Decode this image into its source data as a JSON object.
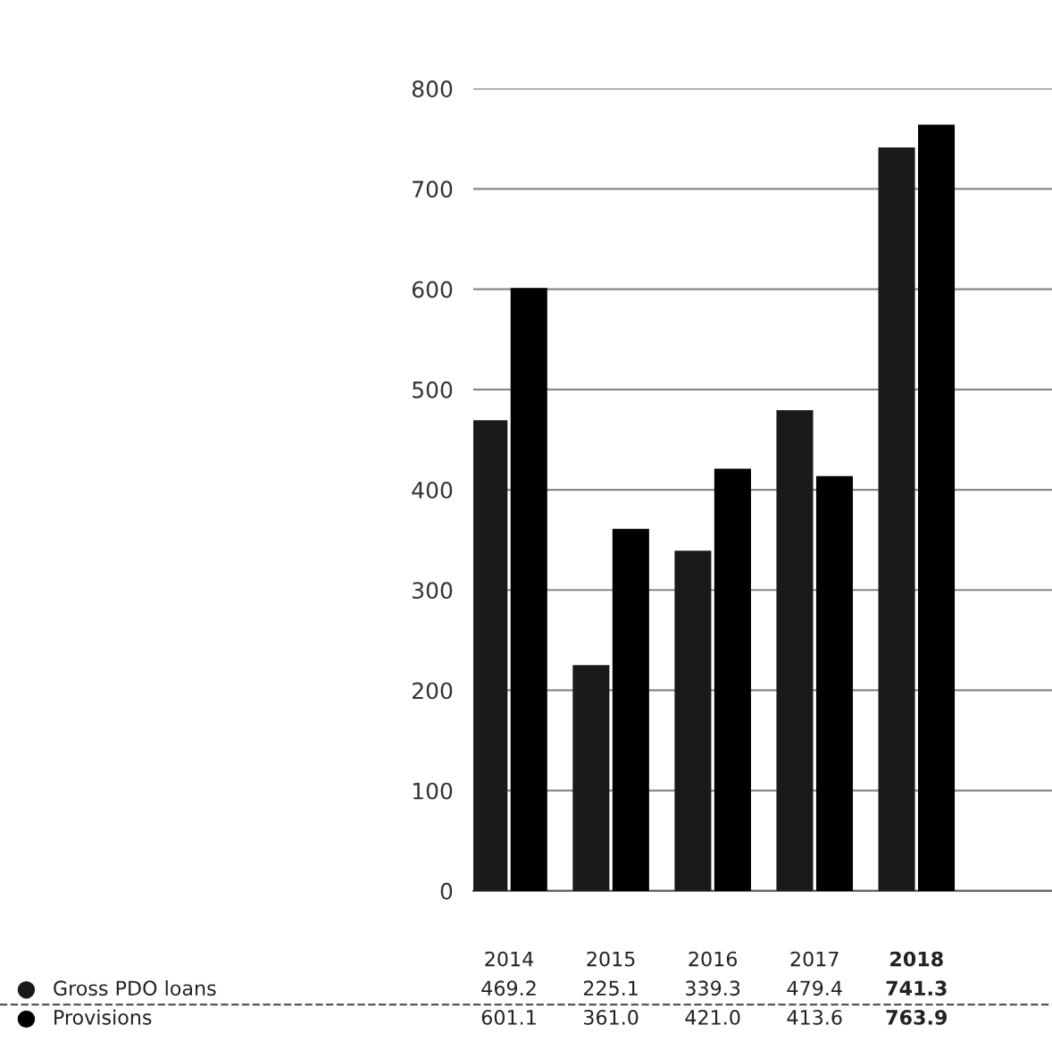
{
  "chart_data": {
    "type": "bar",
    "categories": [
      "2014",
      "2015",
      "2016",
      "2017",
      "2018"
    ],
    "series": [
      {
        "name": "Gross PDO loans",
        "color": "#1a1a1a",
        "values": [
          469.2,
          225.1,
          339.3,
          479.4,
          741.3
        ],
        "value_labels": [
          "469.2",
          "225.1",
          "339.3",
          "479.4",
          "741.3"
        ]
      },
      {
        "name": "Provisions",
        "color": "#000000",
        "values": [
          601.1,
          361.0,
          421.0,
          413.6,
          763.9
        ],
        "value_labels": [
          "601.1",
          "361.0",
          "421.0",
          "413.6",
          "763.9"
        ]
      }
    ],
    "ylim": [
      0,
      800
    ],
    "yticks": [
      0,
      100,
      200,
      300,
      400,
      500,
      600,
      700,
      800
    ],
    "grid": "y",
    "legend": "bottom left"
  }
}
